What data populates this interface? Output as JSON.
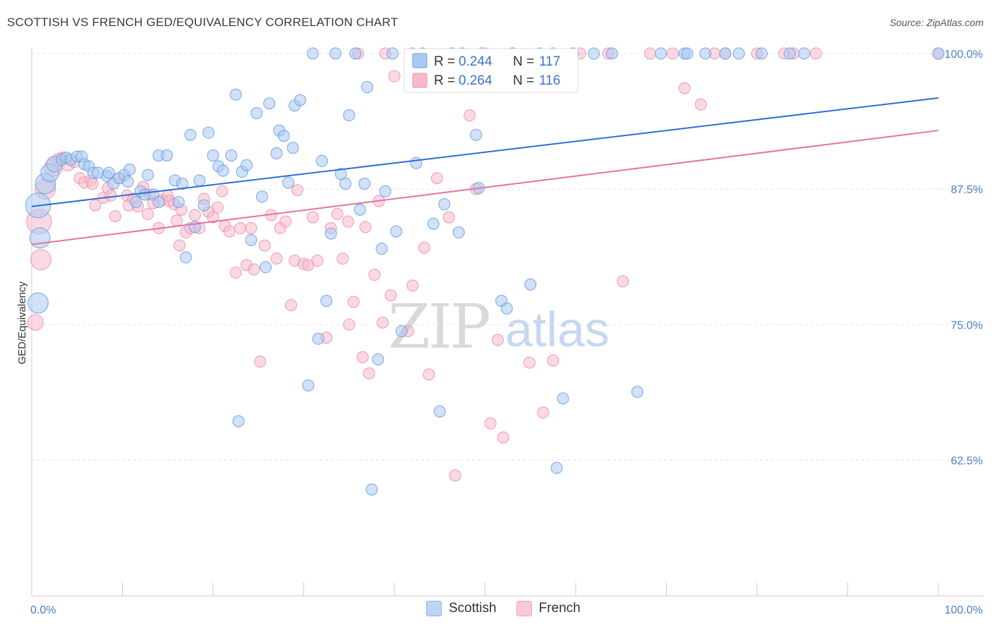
{
  "header": {
    "title": "SCOTTISH VS FRENCH GED/EQUIVALENCY CORRELATION CHART",
    "source": "Source: ZipAtlas.com"
  },
  "watermark": {
    "zip": "ZIP",
    "atlas": "atlas"
  },
  "legend": {
    "rows": [
      {
        "r_label": "R =",
        "r_value": "0.244",
        "n_label": "N =",
        "n_value": "117"
      },
      {
        "r_label": "R =",
        "r_value": "0.264",
        "n_label": "N =",
        "n_value": "116"
      }
    ],
    "bottom": [
      "Scottish",
      "French"
    ]
  },
  "colors": {
    "scottish_fill": "#a9c8f2",
    "scottish_stroke": "#6a9ee0",
    "scottish_line": "#2f6fd0",
    "french_fill": "#f7b9cc",
    "french_stroke": "#ee8fab",
    "french_line": "#e3739b",
    "tick_label": "#4a7dc8",
    "grid": "#e2e2e2"
  },
  "chart_data": {
    "type": "scatter",
    "title": "SCOTTISH VS FRENCH GED/EQUIVALENCY CORRELATION CHART",
    "xlabel": "",
    "ylabel": "GED/Equivalency",
    "xlim": [
      0,
      100
    ],
    "ylim": [
      50,
      100.9
    ],
    "x_tick_labels": [
      "0.0%",
      "100.0%"
    ],
    "y_tick_labels": [
      "100.0%",
      "87.5%",
      "75.0%",
      "62.5%"
    ],
    "y_ticks": [
      100,
      87.5,
      75,
      62.5
    ],
    "grid": "horizontal dashed",
    "legend_position": "top-center",
    "series": [
      {
        "name": "Scottish",
        "R": 0.244,
        "N": 117,
        "trend": {
          "x0": 0,
          "y0": 85.9,
          "x1": 100,
          "y1": 95.9
        },
        "points": [
          [
            0.7,
            86,
            22
          ],
          [
            0.9,
            83,
            18
          ],
          [
            0.7,
            77,
            18
          ],
          [
            1.5,
            88,
            18
          ],
          [
            2,
            89,
            16
          ],
          [
            2.5,
            89.8,
            14
          ],
          [
            3.3,
            90.2,
            10
          ],
          [
            3.8,
            90.4,
            10
          ],
          [
            4.3,
            90.2,
            10
          ],
          [
            5,
            90.5,
            10
          ],
          [
            5.5,
            90.5,
            10
          ],
          [
            5.8,
            89.8,
            10
          ],
          [
            6.3,
            89.6,
            10
          ],
          [
            6.8,
            89,
            10
          ],
          [
            7.3,
            89,
            10
          ],
          [
            8.3,
            88.7,
            10
          ],
          [
            8.5,
            89,
            10
          ],
          [
            9,
            88,
            10
          ],
          [
            9.6,
            88.5,
            10
          ],
          [
            10.2,
            88.8,
            10
          ],
          [
            10.6,
            88.2,
            10
          ],
          [
            10.8,
            89.3,
            10
          ],
          [
            11.5,
            86.3,
            10
          ],
          [
            12,
            87.3,
            10
          ],
          [
            12.5,
            87,
            10
          ],
          [
            12.8,
            88.8,
            10
          ],
          [
            13.4,
            87,
            10
          ],
          [
            14,
            86.3,
            10
          ],
          [
            14,
            90.6,
            10
          ],
          [
            14.9,
            90.6,
            10
          ],
          [
            15.8,
            88.3,
            10
          ],
          [
            16.2,
            86.3,
            10
          ],
          [
            16.6,
            88,
            10
          ],
          [
            17,
            81.2,
            10
          ],
          [
            17.5,
            92.5,
            10
          ],
          [
            18,
            84,
            10
          ],
          [
            18.5,
            88.3,
            10
          ],
          [
            19,
            86,
            10
          ],
          [
            19.5,
            92.7,
            10
          ],
          [
            20,
            90.6,
            10
          ],
          [
            20.6,
            89.6,
            10
          ],
          [
            21.1,
            89.2,
            10
          ],
          [
            22,
            90.6,
            10
          ],
          [
            22.5,
            96.2,
            10
          ],
          [
            22.8,
            66.1,
            10
          ],
          [
            23.2,
            89.1,
            10
          ],
          [
            23.7,
            89.7,
            10
          ],
          [
            24.2,
            82.8,
            10
          ],
          [
            24.8,
            94.5,
            10
          ],
          [
            25.4,
            86.8,
            10
          ],
          [
            25.8,
            80.3,
            10
          ],
          [
            26.2,
            95.4,
            10
          ],
          [
            27,
            90.8,
            10
          ],
          [
            27.3,
            92.9,
            10
          ],
          [
            27.8,
            92.4,
            10
          ],
          [
            28.3,
            88.1,
            10
          ],
          [
            28.8,
            91.3,
            10
          ],
          [
            29,
            95.2,
            10
          ],
          [
            29.6,
            95.7,
            10
          ],
          [
            30.5,
            69.4,
            10
          ],
          [
            31,
            100,
            10
          ],
          [
            31.6,
            73.7,
            10
          ],
          [
            32,
            90.1,
            10
          ],
          [
            32.5,
            77.2,
            10
          ],
          [
            33,
            83.4,
            10
          ],
          [
            33.5,
            100,
            10
          ],
          [
            34.1,
            88.9,
            10
          ],
          [
            34.6,
            88,
            10
          ],
          [
            35,
            94.3,
            10
          ],
          [
            35.7,
            100,
            10
          ],
          [
            36.2,
            85.6,
            10
          ],
          [
            36.7,
            88,
            10
          ],
          [
            37,
            96.9,
            10
          ],
          [
            37.5,
            59.8,
            10
          ],
          [
            38.2,
            71.8,
            10
          ],
          [
            38.6,
            82,
            10
          ],
          [
            39,
            87.3,
            10
          ],
          [
            39.8,
            100,
            10
          ],
          [
            40.2,
            83.6,
            10
          ],
          [
            40.8,
            74.4,
            10
          ],
          [
            42,
            100,
            10
          ],
          [
            42.4,
            89.9,
            10
          ],
          [
            43.1,
            100,
            10
          ],
          [
            44.3,
            84.3,
            10
          ],
          [
            45,
            67,
            10
          ],
          [
            45.5,
            86.1,
            10
          ],
          [
            46.3,
            100,
            10
          ],
          [
            47.1,
            83.5,
            10
          ],
          [
            47.5,
            100,
            10
          ],
          [
            49,
            92.5,
            10
          ],
          [
            49.3,
            87.6,
            10
          ],
          [
            49.6,
            100,
            10
          ],
          [
            51.8,
            77.2,
            10
          ],
          [
            52.4,
            76.5,
            10
          ],
          [
            53,
            100,
            10
          ],
          [
            55,
            78.7,
            10
          ],
          [
            56,
            100,
            10
          ],
          [
            57.5,
            100,
            10
          ],
          [
            57.9,
            61.8,
            10
          ],
          [
            58.6,
            68.2,
            10
          ],
          [
            59.7,
            100,
            10
          ],
          [
            62,
            100,
            10
          ],
          [
            64,
            100,
            10
          ],
          [
            66.8,
            68.8,
            10
          ],
          [
            69.4,
            100,
            10
          ],
          [
            72,
            100,
            10
          ],
          [
            72.3,
            100,
            10
          ],
          [
            74.3,
            100,
            10
          ],
          [
            76.5,
            100,
            10
          ],
          [
            78,
            100,
            10
          ],
          [
            80.5,
            100,
            10
          ],
          [
            83.6,
            100,
            10
          ],
          [
            85.2,
            100,
            10
          ],
          [
            100,
            100,
            10
          ]
        ]
      },
      {
        "name": "French",
        "R": 0.264,
        "N": 116,
        "trend": {
          "x0": 0,
          "y0": 82.4,
          "x1": 100,
          "y1": 92.9
        },
        "points": [
          [
            0.4,
            75.2,
            14
          ],
          [
            0.8,
            84.5,
            22
          ],
          [
            1,
            81,
            18
          ],
          [
            1.5,
            87.5,
            18
          ],
          [
            2.4,
            89.5,
            16
          ],
          [
            3,
            90.2,
            12
          ],
          [
            3.4,
            90.4,
            10
          ],
          [
            4,
            89.8,
            12
          ],
          [
            4.7,
            90,
            10
          ],
          [
            5.3,
            88.5,
            10
          ],
          [
            5.8,
            88.1,
            10
          ],
          [
            6.5,
            88.3,
            10
          ],
          [
            6.7,
            88,
            10
          ],
          [
            7,
            86,
            10
          ],
          [
            7.9,
            86.7,
            10
          ],
          [
            8.4,
            87.6,
            10
          ],
          [
            8.7,
            86.9,
            10
          ],
          [
            9.2,
            85,
            10
          ],
          [
            9.7,
            88.5,
            10
          ],
          [
            10.5,
            86.9,
            10
          ],
          [
            10.7,
            86,
            10
          ],
          [
            11.2,
            86.6,
            10
          ],
          [
            11.7,
            85.9,
            10
          ],
          [
            12.3,
            87.7,
            10
          ],
          [
            12.8,
            85.2,
            10
          ],
          [
            13,
            87,
            10
          ],
          [
            13.4,
            86.2,
            10
          ],
          [
            14,
            83.9,
            10
          ],
          [
            14.4,
            86.5,
            10
          ],
          [
            15,
            86.9,
            10
          ],
          [
            15.2,
            86.4,
            10
          ],
          [
            15.7,
            86.1,
            10
          ],
          [
            16,
            84.6,
            10
          ],
          [
            16.3,
            82.3,
            10
          ],
          [
            16.5,
            85.6,
            10
          ],
          [
            17,
            83.5,
            10
          ],
          [
            17.5,
            83.9,
            10
          ],
          [
            18,
            85.1,
            10
          ],
          [
            18.5,
            83.9,
            10
          ],
          [
            19,
            86.6,
            10
          ],
          [
            19.5,
            85.4,
            10
          ],
          [
            20,
            84.9,
            10
          ],
          [
            20.5,
            85.8,
            10
          ],
          [
            21,
            87.3,
            10
          ],
          [
            21.3,
            84.1,
            10
          ],
          [
            21.8,
            83.6,
            10
          ],
          [
            22.5,
            79.8,
            10
          ],
          [
            23,
            83.9,
            10
          ],
          [
            23.7,
            80.5,
            10
          ],
          [
            24.2,
            83.9,
            10
          ],
          [
            24.5,
            80.1,
            10
          ],
          [
            25.2,
            71.6,
            10
          ],
          [
            25.7,
            82.3,
            10
          ],
          [
            26.4,
            85.1,
            10
          ],
          [
            27,
            81.1,
            10
          ],
          [
            27.4,
            83.9,
            10
          ],
          [
            28,
            84.5,
            10
          ],
          [
            28.6,
            76.8,
            10
          ],
          [
            29,
            80.9,
            10
          ],
          [
            29.3,
            87.4,
            10
          ],
          [
            30,
            80.6,
            10
          ],
          [
            30.5,
            80.5,
            10
          ],
          [
            31,
            84.9,
            10
          ],
          [
            31.5,
            80.9,
            10
          ],
          [
            32.5,
            73.8,
            10
          ],
          [
            33,
            83.9,
            10
          ],
          [
            33.7,
            85.2,
            10
          ],
          [
            34.3,
            81.1,
            10
          ],
          [
            34.9,
            84.5,
            10
          ],
          [
            35,
            75,
            10
          ],
          [
            35.5,
            77.1,
            10
          ],
          [
            36,
            100,
            10
          ],
          [
            36.5,
            72,
            10
          ],
          [
            36.8,
            84,
            10
          ],
          [
            37.2,
            70.5,
            10
          ],
          [
            37.8,
            79.6,
            10
          ],
          [
            38.3,
            86.4,
            10
          ],
          [
            38.7,
            75.2,
            10
          ],
          [
            39,
            100,
            10
          ],
          [
            39.6,
            77.7,
            10
          ],
          [
            40,
            97.9,
            10
          ],
          [
            41.5,
            74.4,
            10
          ],
          [
            42,
            78.6,
            10
          ],
          [
            43.3,
            82.1,
            10
          ],
          [
            43.8,
            70.4,
            10
          ],
          [
            44.7,
            88.5,
            10
          ],
          [
            46,
            84.9,
            10
          ],
          [
            46.7,
            61.1,
            10
          ],
          [
            48.3,
            94.3,
            10
          ],
          [
            49,
            87.5,
            10
          ],
          [
            50,
            100,
            10
          ],
          [
            50.6,
            65.9,
            10
          ],
          [
            51.4,
            73.6,
            10
          ],
          [
            52,
            64.6,
            10
          ],
          [
            53.1,
            100,
            10
          ],
          [
            54.9,
            71.5,
            10
          ],
          [
            56.4,
            66.9,
            10
          ],
          [
            57.5,
            71.7,
            10
          ],
          [
            60.5,
            100,
            10
          ],
          [
            63.6,
            100,
            10
          ],
          [
            65.2,
            79,
            10
          ],
          [
            68.2,
            100,
            10
          ],
          [
            70.7,
            100,
            10
          ],
          [
            72,
            96.8,
            10
          ],
          [
            73.8,
            95.3,
            10
          ],
          [
            75.3,
            100,
            10
          ],
          [
            76.5,
            100,
            10
          ],
          [
            80,
            100,
            10
          ],
          [
            83,
            100,
            10
          ],
          [
            84,
            100,
            10
          ],
          [
            86.5,
            100,
            10
          ],
          [
            100,
            100,
            10
          ]
        ]
      }
    ]
  }
}
